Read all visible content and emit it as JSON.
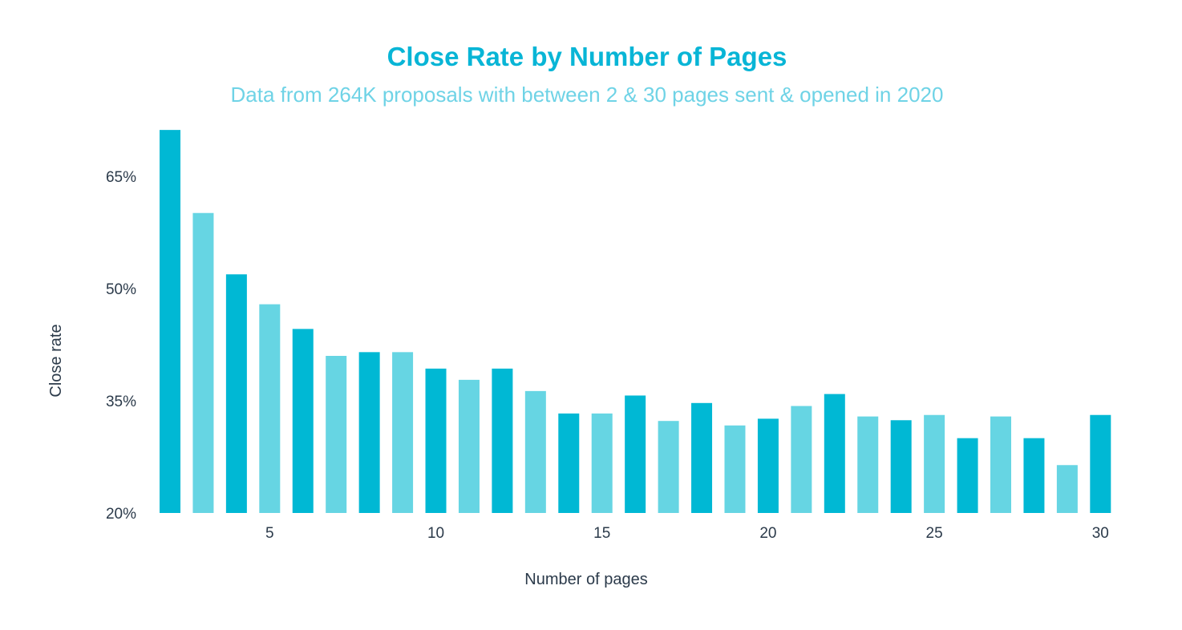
{
  "chart_data": {
    "type": "bar",
    "title": "Close Rate by Number of Pages",
    "subtitle": "Data from 264K proposals with between 2 & 30 pages sent & opened in 2020",
    "xlabel": "Number of pages",
    "ylabel": "Close rate",
    "x": [
      2,
      3,
      4,
      5,
      6,
      7,
      8,
      9,
      10,
      11,
      12,
      13,
      14,
      15,
      16,
      17,
      18,
      19,
      20,
      21,
      22,
      23,
      24,
      25,
      26,
      27,
      28,
      29,
      30
    ],
    "values": [
      71.2,
      60.1,
      51.9,
      47.9,
      44.6,
      41.0,
      41.5,
      41.5,
      39.3,
      37.8,
      39.3,
      36.3,
      33.3,
      33.3,
      35.7,
      32.3,
      34.7,
      31.7,
      32.6,
      34.3,
      35.9,
      32.9,
      32.4,
      33.1,
      30.0,
      32.9,
      30.0,
      26.4,
      33.1
    ],
    "ylim": [
      20,
      72
    ],
    "yticks": [
      {
        "value": 20,
        "label": "20%"
      },
      {
        "value": 35,
        "label": "35%"
      },
      {
        "value": 50,
        "label": "50%"
      },
      {
        "value": 65,
        "label": "65%"
      }
    ],
    "xticks": [
      {
        "value": 5,
        "label": "5"
      },
      {
        "value": 10,
        "label": "10"
      },
      {
        "value": 15,
        "label": "15"
      },
      {
        "value": 20,
        "label": "20"
      },
      {
        "value": 25,
        "label": "25"
      },
      {
        "value": 30,
        "label": "30"
      }
    ],
    "grid": false,
    "colors": {
      "even_pages": "#00b8d4",
      "odd_pages": "#66d5e3",
      "title": "#08b5d6",
      "subtitle": "#6fd3e6"
    }
  }
}
